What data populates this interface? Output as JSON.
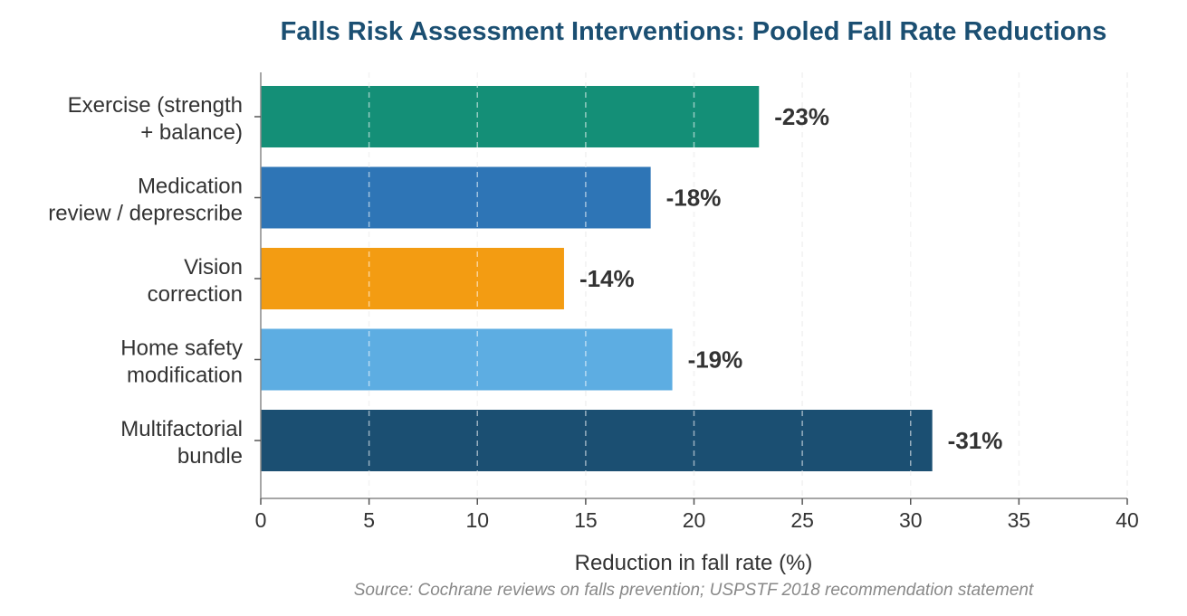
{
  "chart_data": {
    "type": "bar",
    "orientation": "horizontal",
    "title": "Falls Risk Assessment Interventions: Pooled Fall Rate Reductions",
    "xlabel": "Reduction in fall rate (%)",
    "ylabel": "",
    "xlim": [
      0,
      40
    ],
    "xticks": [
      0,
      5,
      10,
      15,
      20,
      25,
      30,
      35,
      40
    ],
    "grid": "vertical dashed",
    "categories": [
      [
        "Exercise (strength",
        "+ balance)"
      ],
      [
        "Medication",
        "review / deprescribe"
      ],
      [
        "Vision",
        "correction"
      ],
      [
        "Home safety",
        "modification"
      ],
      [
        "Multifactorial",
        "bundle"
      ]
    ],
    "values": [
      23,
      18,
      14,
      19,
      31
    ],
    "value_labels": [
      "-23%",
      "-18%",
      "-14%",
      "-19%",
      "-31%"
    ],
    "colors": [
      "#148f77",
      "#2e75b6",
      "#f39c12",
      "#5dade2",
      "#1b4f72"
    ],
    "source": "Source: Cochrane reviews on falls prevention; USPSTF 2018 recommendation statement"
  }
}
